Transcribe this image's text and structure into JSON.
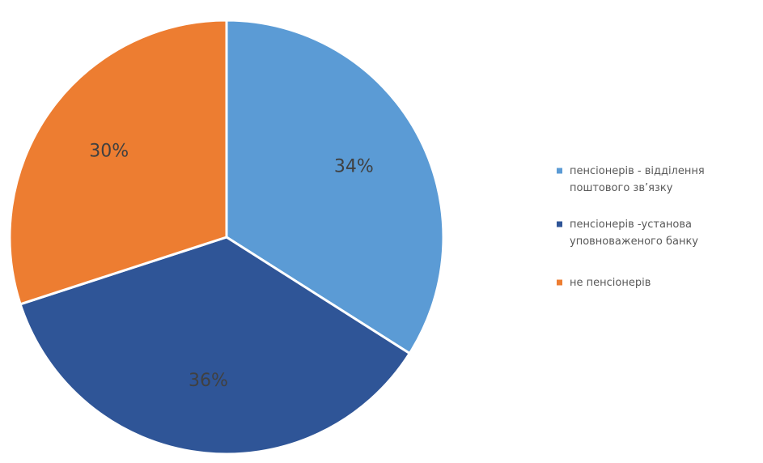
{
  "chart_data": {
    "type": "pie",
    "title": "",
    "categories": [
      "пенсіонерів - відділення поштового зв’язку",
      "пенсіонерів -установа уповноваженого банку",
      "не пенсіонерів"
    ],
    "values": [
      34,
      36,
      30
    ],
    "labels": [
      "34%",
      "36%",
      "30%"
    ],
    "colors": [
      "#5b9bd5",
      "#2f5597",
      "#ed7d31"
    ],
    "legend": {
      "position": "right",
      "entries": [
        {
          "lines": [
            "пенсіонерів  - відділення",
            "поштового зв’язку"
          ],
          "color": "#5b9bd5"
        },
        {
          "lines": [
            "пенсіонерів  -установа",
            "уповноваженого банку"
          ],
          "color": "#2f5597"
        },
        {
          "lines": [
            "не пенсіонерів"
          ],
          "color": "#ed7d31"
        }
      ]
    }
  }
}
